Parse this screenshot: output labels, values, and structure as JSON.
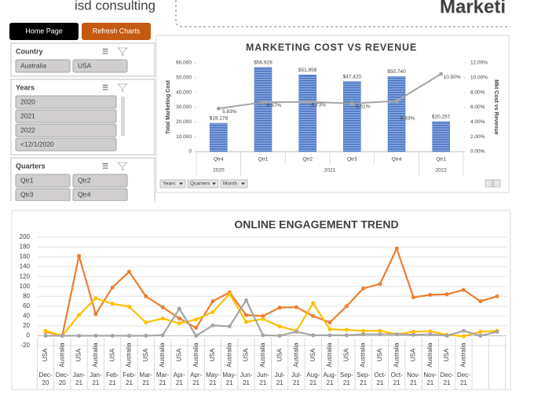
{
  "header": {
    "brand": "isd consulting",
    "heading": "Marketi"
  },
  "buttons": [
    "Home Page",
    "Refresh Charts"
  ],
  "slicers": [
    {
      "title": "Country",
      "items": [
        "Australia",
        "USA"
      ]
    },
    {
      "title": "Years",
      "items": [
        "2020",
        "2021",
        "2022",
        "<12/1/2020"
      ]
    },
    {
      "title": "Quarters",
      "items": [
        "Qtr1",
        "Qtr2",
        "Qtr3",
        "Qtr4"
      ]
    }
  ],
  "chart_data": [
    {
      "type": "bar",
      "title": "MARKETING COST VS REVENUE",
      "y_label": "Total Marketing Cost",
      "y2_label": "Mkt Cost vs Revenue",
      "categories": [
        "Qtr4",
        "Qtr1",
        "Qtr2",
        "Qtr3",
        "Qtr4",
        "Qtr1"
      ],
      "group_labels": [
        "2020",
        "2021",
        "2022"
      ],
      "group_sizes": [
        1,
        4,
        1
      ],
      "series": [
        {
          "type": "bar",
          "color": "#4472c4",
          "values": [
            19178,
            56929,
            51858,
            47420,
            50740,
            20257
          ],
          "value_labels": [
            "$19,178",
            "$56,929",
            "$51,858",
            "$47,420",
            "$50,740",
            "$20,257"
          ]
        },
        {
          "type": "line",
          "axis": "y2",
          "color": "#a5a5a5",
          "values": [
            5.83,
            6.67,
            6.73,
            6.51,
            6.83,
            10.5
          ],
          "value_labels": [
            "5.83%",
            "6.67%",
            "6.73%",
            "6.51%",
            "6.83%",
            "10.50%"
          ]
        }
      ],
      "ylim": [
        0,
        60000
      ],
      "yticks": [
        0,
        {
          "value": 10000,
          "label": "10,000"
        },
        {
          "value": 20000,
          "label": "20,000"
        },
        {
          "value": 30000,
          "label": "30,000"
        },
        {
          "value": 40000,
          "label": "40,000"
        },
        {
          "value": 50000,
          "label": "50,000"
        },
        {
          "value": 60000,
          "label": "60,000"
        }
      ],
      "y2lim": [
        0,
        12
      ],
      "y2ticks": [
        {
          "value": 0,
          "label": "0.00%"
        },
        {
          "value": 2,
          "label": "2.00%"
        },
        {
          "value": 4,
          "label": "4.00%"
        },
        {
          "value": 6,
          "label": "6.00%"
        },
        {
          "value": 8,
          "label": "8.00%"
        },
        {
          "value": 10,
          "label": "10.00%"
        },
        {
          "value": 12,
          "label": "12.00%"
        }
      ],
      "filter_buttons": [
        "Years",
        "Quarters",
        "Month"
      ]
    },
    {
      "type": "line",
      "title": "ONLINE ENGAGEMENT TREND",
      "categories": [
        "USA",
        "Australia",
        "USA",
        "Australia",
        "USA",
        "Australia",
        "USA",
        "Australia",
        "USA",
        "Australia",
        "USA",
        "Australia",
        "USA",
        "Australia",
        "USA",
        "Australia",
        "USA",
        "Australia",
        "USA",
        "Australia",
        "USA",
        "Australia",
        "USA",
        "Australia",
        "USA",
        "Australia",
        null,
        null
      ],
      "periods": [
        "Dec-20",
        "Dec-20",
        "Jan-21",
        "Jan-21",
        "Feb-21",
        "Feb-21",
        "Mar-21",
        "Mar-21",
        "Apr-21",
        "Apr-21",
        "May-21",
        "May-21",
        "Jun-21",
        "Jun-21",
        "Jul-21",
        "Jul-21",
        "Aug-21",
        "Aug-21",
        "Sep-21",
        "Sep-21",
        "Oct-21",
        "Oct-21",
        "Nov-21",
        "Nov-21",
        "Dec-21",
        "Dec-21",
        null,
        null
      ],
      "series": [
        {
          "color": "#ed7d31",
          "values": [
            8,
            0,
            162,
            44,
            98,
            130,
            80,
            58,
            35,
            16,
            70,
            88,
            42,
            40,
            57,
            58,
            40,
            27,
            60,
            96,
            105,
            177,
            78,
            83,
            84,
            93,
            70,
            80
          ]
        },
        {
          "color": "#ffc000",
          "values": [
            10,
            0,
            42,
            76,
            65,
            59,
            27,
            35,
            25,
            33,
            48,
            85,
            28,
            34,
            19,
            10,
            66,
            13,
            12,
            10,
            10,
            3,
            8,
            9,
            2,
            -1,
            8,
            10
          ]
        },
        {
          "color": "#a5a5a5",
          "values": [
            0,
            0,
            0,
            0,
            0,
            0,
            0,
            1,
            55,
            0,
            21,
            19,
            72,
            1,
            0,
            8,
            1,
            1,
            1,
            3,
            3,
            3,
            2,
            3,
            0,
            10,
            0,
            8
          ]
        }
      ],
      "ylim": [
        -20,
        200
      ],
      "yticks": [
        -20,
        0,
        20,
        40,
        60,
        80,
        100,
        120,
        140,
        160,
        180,
        200
      ],
      "grid": true
    }
  ]
}
